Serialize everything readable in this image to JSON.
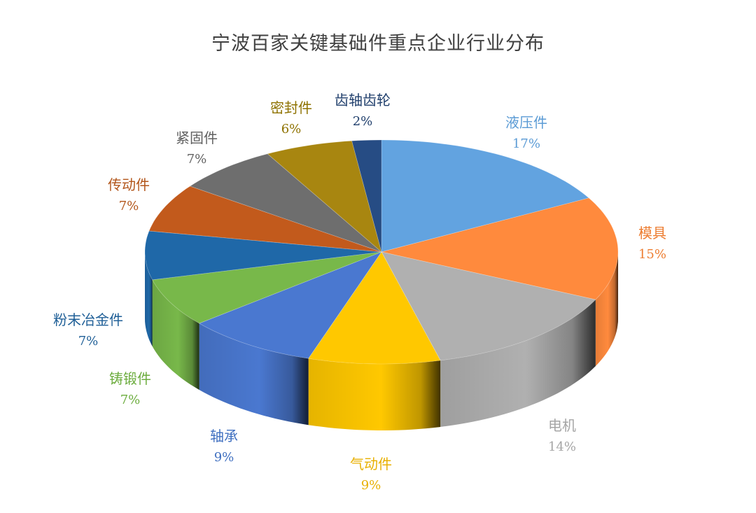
{
  "chart_data": {
    "type": "pie",
    "title": "宁波百家关键基础件重点企业行业分布",
    "slices": [
      {
        "label": "液压件",
        "value": 17,
        "value_text": "17%",
        "color": "#62A3E0"
      },
      {
        "label": "模具",
        "value": 15,
        "value_text": "15%",
        "color": "#FF8A3D"
      },
      {
        "label": "电机",
        "value": 14,
        "value_text": "14%",
        "color": "#B0B0B0"
      },
      {
        "label": "气动件",
        "value": 9,
        "value_text": "9%",
        "color": "#FFC800"
      },
      {
        "label": "轴承",
        "value": 9,
        "value_text": "9%",
        "color": "#4A78D0"
      },
      {
        "label": "铸锻件",
        "value": 7,
        "value_text": "7%",
        "color": "#78B84A"
      },
      {
        "label": "粉末冶金件",
        "value": 7,
        "value_text": "7%",
        "color": "#1F68A8"
      },
      {
        "label": "传动件",
        "value": 7,
        "value_text": "7%",
        "color": "#C25A1C"
      },
      {
        "label": "紧固件",
        "value": 7,
        "value_text": "7%",
        "color": "#6E6E6E"
      },
      {
        "label": "密封件",
        "value": 6,
        "value_text": "6%",
        "color": "#A88610"
      },
      {
        "label": "齿轴齿轮",
        "value": 2,
        "value_text": "2%",
        "color": "#264C84"
      }
    ],
    "label_colors": [
      "#5B9BD5",
      "#ED7D31",
      "#A5A5A5",
      "#E8B000",
      "#3F6FC0",
      "#6DAD3F",
      "#1F5F97",
      "#B2551A",
      "#606060",
      "#8E7200",
      "#203F6C"
    ],
    "style": "3d-pie",
    "legend": "none"
  }
}
